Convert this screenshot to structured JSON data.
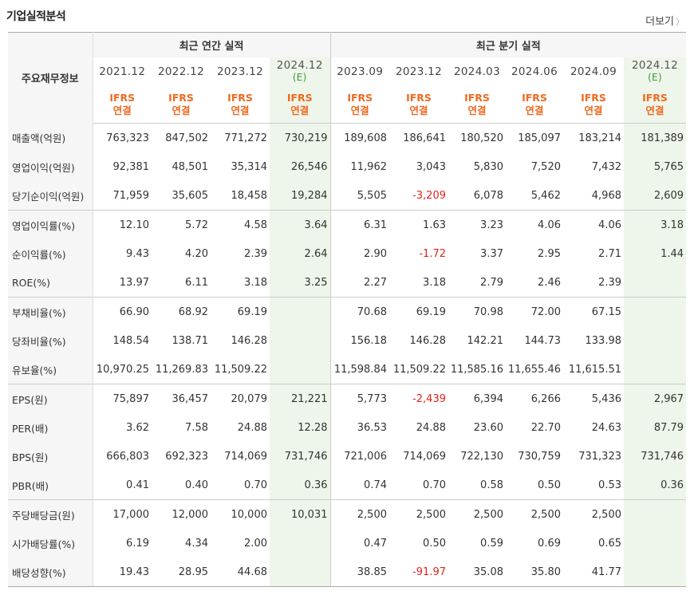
{
  "header": {
    "title": "기업실적분석",
    "more_label": "더보기"
  },
  "table": {
    "row_label_header": "주요재무정보",
    "annual_header": "최근 연간 실적",
    "quarter_header": "최근 분기 실적",
    "annual_periods": [
      {
        "year": "2021.12",
        "est": ""
      },
      {
        "year": "2022.12",
        "est": ""
      },
      {
        "year": "2023.12",
        "est": ""
      },
      {
        "year": "2024.12",
        "est": "(E)"
      }
    ],
    "quarter_periods": [
      {
        "year": "2023.09",
        "est": ""
      },
      {
        "year": "2023.12",
        "est": ""
      },
      {
        "year": "2024.03",
        "est": ""
      },
      {
        "year": "2024.06",
        "est": ""
      },
      {
        "year": "2024.09",
        "est": ""
      },
      {
        "year": "2024.12",
        "est": "(E)"
      }
    ],
    "ifrs_line1": "IFRS",
    "ifrs_line2": "연결",
    "rows": [
      {
        "label": "매출액(억원)",
        "values": [
          "763,323",
          "847,502",
          "771,272",
          "730,219",
          "189,608",
          "186,641",
          "180,520",
          "185,097",
          "183,214",
          "181,389"
        ]
      },
      {
        "label": "영업이익(억원)",
        "values": [
          "92,381",
          "48,501",
          "35,314",
          "26,546",
          "11,962",
          "3,043",
          "5,830",
          "7,520",
          "7,432",
          "5,765"
        ]
      },
      {
        "label": "당기순이익(억원)",
        "values": [
          "71,959",
          "35,605",
          "18,458",
          "19,284",
          "5,505",
          "-3,209",
          "6,078",
          "5,462",
          "4,968",
          "2,609"
        ]
      },
      {
        "label": "영업이익률(%)",
        "values": [
          "12.10",
          "5.72",
          "4.58",
          "3.64",
          "6.31",
          "1.63",
          "3.23",
          "4.06",
          "4.06",
          "3.18"
        ]
      },
      {
        "label": "순이익률(%)",
        "values": [
          "9.43",
          "4.20",
          "2.39",
          "2.64",
          "2.90",
          "-1.72",
          "3.37",
          "2.95",
          "2.71",
          "1.44"
        ]
      },
      {
        "label": "ROE(%)",
        "values": [
          "13.97",
          "6.11",
          "3.18",
          "3.25",
          "2.27",
          "3.18",
          "2.79",
          "2.46",
          "2.39",
          ""
        ]
      },
      {
        "label": "부채비율(%)",
        "values": [
          "66.90",
          "68.92",
          "69.19",
          "",
          "70.68",
          "69.19",
          "70.98",
          "72.00",
          "67.15",
          ""
        ]
      },
      {
        "label": "당좌비율(%)",
        "values": [
          "148.54",
          "138.71",
          "146.28",
          "",
          "156.18",
          "146.28",
          "142.21",
          "144.73",
          "133.98",
          ""
        ]
      },
      {
        "label": "유보율(%)",
        "values": [
          "10,970.25",
          "11,269.83",
          "11,509.22",
          "",
          "11,598.84",
          "11,509.22",
          "11,585.16",
          "11,655.46",
          "11,615.51",
          ""
        ]
      },
      {
        "label": "EPS(원)",
        "values": [
          "75,897",
          "36,457",
          "20,079",
          "21,221",
          "5,773",
          "-2,439",
          "6,394",
          "6,266",
          "5,436",
          "2,967"
        ]
      },
      {
        "label": "PER(배)",
        "values": [
          "3.62",
          "7.58",
          "24.88",
          "12.28",
          "36.53",
          "24.88",
          "23.60",
          "22.70",
          "24.63",
          "87.79"
        ]
      },
      {
        "label": "BPS(원)",
        "values": [
          "666,803",
          "692,323",
          "714,069",
          "731,746",
          "721,006",
          "714,069",
          "722,130",
          "730,759",
          "731,323",
          "731,746"
        ]
      },
      {
        "label": "PBR(배)",
        "values": [
          "0.41",
          "0.40",
          "0.70",
          "0.36",
          "0.74",
          "0.70",
          "0.58",
          "0.50",
          "0.53",
          "0.36"
        ]
      },
      {
        "label": "주당배당금(원)",
        "values": [
          "17,000",
          "12,000",
          "10,000",
          "10,031",
          "2,500",
          "2,500",
          "2,500",
          "2,500",
          "2,500",
          ""
        ]
      },
      {
        "label": "시가배당률(%)",
        "values": [
          "6.19",
          "4.34",
          "2.00",
          "",
          "0.47",
          "0.50",
          "0.59",
          "0.69",
          "0.65",
          ""
        ]
      },
      {
        "label": "배당성향(%)",
        "values": [
          "19.43",
          "28.95",
          "44.68",
          "",
          "38.85",
          "-91.97",
          "35.08",
          "35.80",
          "41.77",
          ""
        ]
      }
    ]
  }
}
